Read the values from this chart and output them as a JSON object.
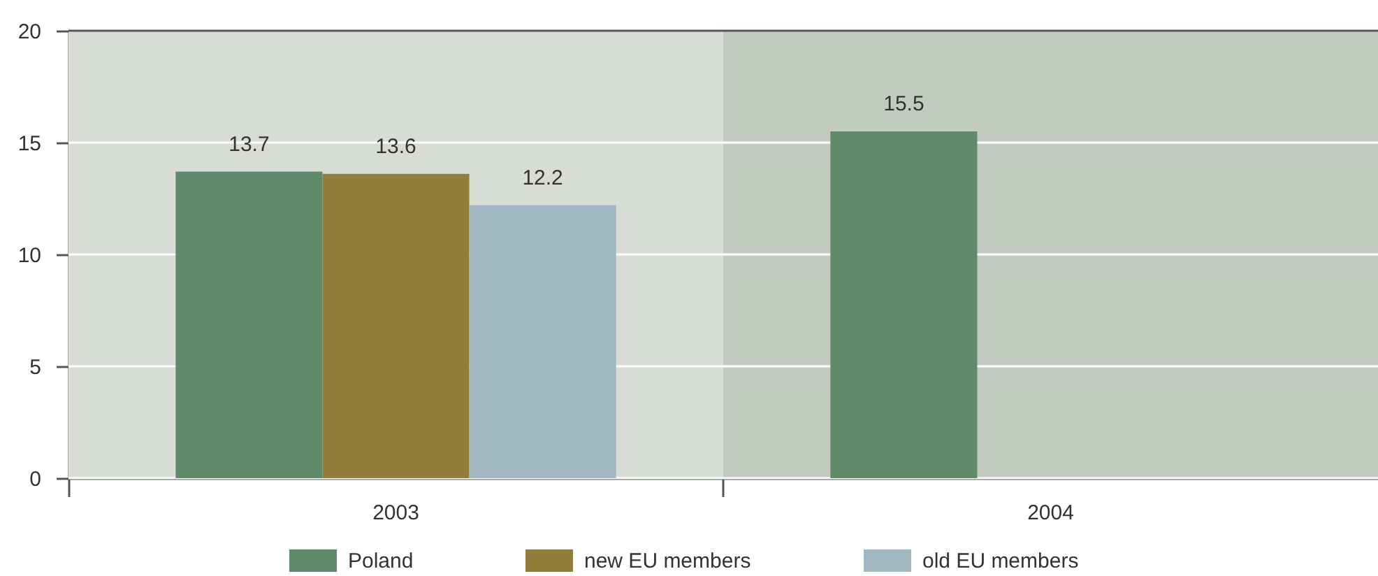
{
  "chart_data": {
    "type": "bar",
    "categories": [
      "2003",
      "2004"
    ],
    "series": [
      {
        "name": "Poland",
        "color": "#5f8b6a",
        "values": [
          13.7,
          15.5
        ]
      },
      {
        "name": "new EU members",
        "color": "#927e3a",
        "values": [
          13.6,
          null
        ]
      },
      {
        "name": "old EU members",
        "color": "#a1b8c2",
        "values": [
          12.2,
          null
        ]
      }
    ],
    "ylim": [
      0,
      20
    ],
    "yticks": [
      0,
      5,
      10,
      15,
      20
    ],
    "grid": "y",
    "data_labels": true,
    "legend": "bottom",
    "bands": [
      {
        "axis": "x",
        "from": "2003",
        "to": "2003",
        "color": "#d7dcd5"
      },
      {
        "axis": "x",
        "from": "2004",
        "to": "2004",
        "color": "#c1cbbf"
      }
    ]
  }
}
